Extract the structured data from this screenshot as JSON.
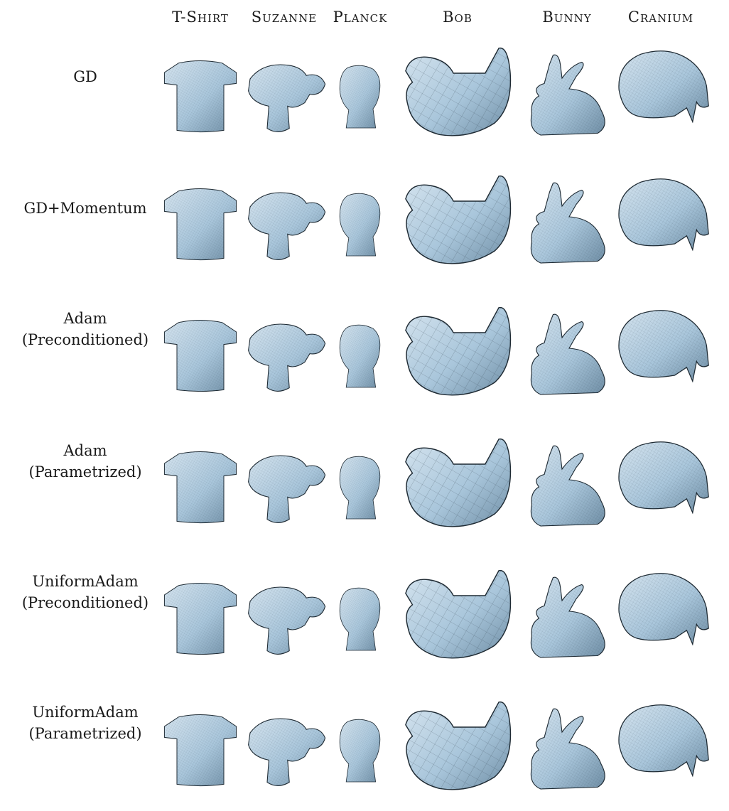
{
  "columns": [
    "T-Shirt",
    "Suzanne",
    "Planck",
    "Bob",
    "Bunny",
    "Cranium"
  ],
  "rows": [
    {
      "lines": [
        "GD"
      ]
    },
    {
      "lines": [
        "GD+Momentum"
      ]
    },
    {
      "lines": [
        "Adam",
        "(Preconditioned)"
      ]
    },
    {
      "lines": [
        "Adam",
        "(Parametrized)"
      ]
    },
    {
      "lines": [
        "UniformAdam",
        "(Preconditioned)"
      ]
    },
    {
      "lines": [
        "UniformAdam",
        "(Parametrized)"
      ]
    }
  ],
  "colors": {
    "mesh_fill": "#a9c6db",
    "mesh_shade": "#6f8ea5",
    "wire": "#2b3a46",
    "outline": "#1e2a33"
  }
}
